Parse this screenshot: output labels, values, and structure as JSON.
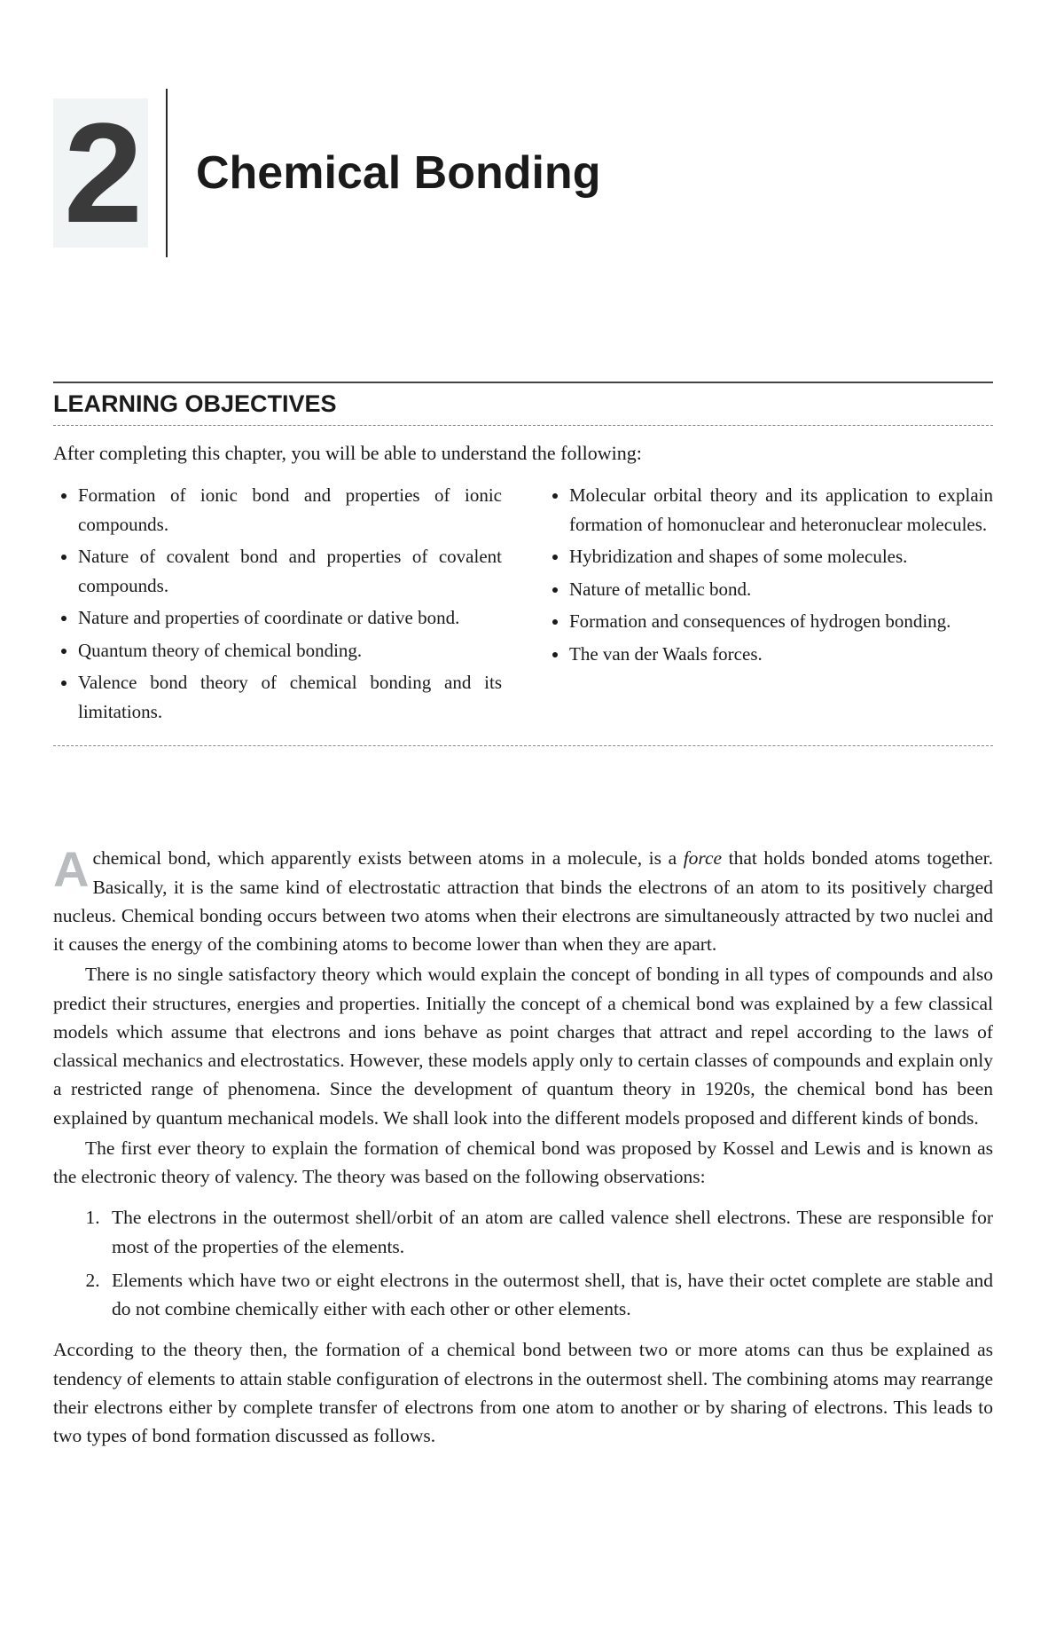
{
  "chapter": {
    "number": "2",
    "title": "Chemical Bonding"
  },
  "section_heading": "LEARNING OBJECTIVES",
  "objectives_intro": "After completing this chapter, you will be able to understand the following:",
  "objectives_left": [
    "Formation of ionic bond and properties of ionic compounds.",
    "Nature of covalent bond and properties of covalent compounds.",
    "Nature and properties of coordinate or dative bond.",
    "Quantum theory of chemical bonding.",
    "Valence bond theory of chemical bonding and its limitations."
  ],
  "objectives_right": [
    "Molecular orbital theory and its application to explain formation of homonuclear and heteronuclear molecules.",
    "Hybridization and shapes of some molecules.",
    "Nature of metallic bond.",
    "Formation and consequences of hydrogen bonding.",
    "The van der Waals forces."
  ],
  "para1_dropcap": "A",
  "para1_first": " chemical bond, which apparently exists between atoms in a molecule, is a ",
  "para1_force": "force",
  "para1_rest": " that holds bonded atoms together. Basically, it is the same kind of electrostatic attraction that binds the electrons of an atom to its positively charged nucleus. Chemical bonding occurs between two atoms when their electrons are simultaneously attracted by two nuclei and it causes the energy of the combining atoms to become lower than when they are apart.",
  "para2": "There is no single satisfactory theory which would explain the concept of bonding in all types of compounds and also predict their structures, energies and properties. Initially the concept of a chemical bond was explained by a few classical models which assume that electrons and ions behave as point charges that attract and repel according to the laws of classical mechanics and electrostatics. However, these models apply only to certain classes of compounds and explain only a restricted range of phenomena. Since the development of quantum theory in 1920s, the chemical bond has been explained by quantum mechanical models. We shall look into the different models proposed and different kinds of bonds.",
  "para3": "The first ever theory to explain the formation of chemical bond was proposed by Kossel and Lewis and is known as the electronic theory of valency. The theory was based on the following observations:",
  "observations": [
    "The electrons in the outermost shell/orbit of an atom are called valence shell electrons. These are responsible for most of the properties of the elements.",
    "Elements which have two or eight electrons in the outermost shell, that is, have their octet complete are stable and do not combine chemically either with each other or other elements."
  ],
  "para4": "According to the theory then, the formation of a chemical bond between two or more atoms can thus be explained as tendency of elements to attain stable configuration of electrons in the outermost shell. The combining atoms may rearrange their electrons either by complete transfer of electrons from one atom to another or by sharing of electrons. This leads to two types of bond formation discussed as follows.",
  "style": {
    "page_bg": "#ffffff",
    "text_color": "#1a1a1a",
    "dropcap_color": "#b8bcbe",
    "number_bg": "#f0f4f5",
    "body_fontsize": 21.5,
    "heading_fontsize": 27,
    "title_fontsize": 52,
    "chapter_num_fontsize": 160
  }
}
